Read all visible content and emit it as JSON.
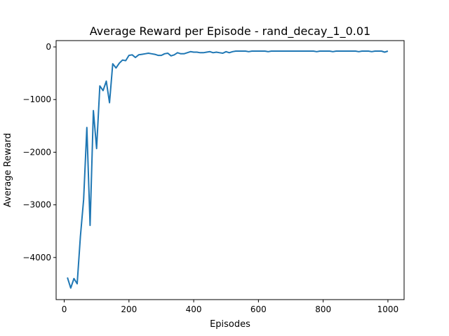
{
  "chart_data": {
    "type": "line",
    "title": "Average Reward per Episode - rand_decay_1_0.01",
    "xlabel": "Episodes",
    "ylabel": "Average Reward",
    "xlim": [
      -25,
      1050
    ],
    "ylim": [
      -4800,
      120
    ],
    "xticks": [
      0,
      200,
      400,
      600,
      800,
      1000
    ],
    "yticks": [
      -4000,
      -3000,
      -2000,
      -1000,
      0
    ],
    "xtick_labels": [
      "0",
      "200",
      "400",
      "600",
      "800",
      "1000"
    ],
    "ytick_labels": [
      "−4000",
      "−3000",
      "−2000",
      "−1000",
      "0"
    ],
    "grid": false,
    "line_color": "#1f77b4",
    "series": [
      {
        "x": [
          10,
          20,
          30,
          40,
          50,
          60,
          70,
          80,
          90,
          100,
          110,
          120,
          130,
          140,
          150,
          160,
          170,
          180,
          190,
          200,
          210,
          220,
          230,
          240,
          250,
          260,
          270,
          280,
          290,
          300,
          310,
          320,
          330,
          340,
          350,
          360,
          370,
          380,
          390,
          400,
          410,
          420,
          430,
          440,
          450,
          460,
          470,
          480,
          490,
          500,
          510,
          520,
          530,
          540,
          550,
          560,
          570,
          580,
          590,
          600,
          610,
          620,
          630,
          640,
          650,
          660,
          670,
          680,
          690,
          700,
          710,
          720,
          730,
          740,
          750,
          760,
          770,
          780,
          790,
          800,
          810,
          820,
          830,
          840,
          850,
          860,
          870,
          880,
          890,
          900,
          910,
          920,
          930,
          940,
          950,
          960,
          970,
          980,
          990,
          1000
        ],
        "values": [
          -4380,
          -4580,
          -4400,
          -4500,
          -3600,
          -2900,
          -1530,
          -3390,
          -1210,
          -1930,
          -740,
          -830,
          -650,
          -1060,
          -320,
          -400,
          -310,
          -250,
          -260,
          -160,
          -150,
          -200,
          -150,
          -140,
          -130,
          -120,
          -130,
          -140,
          -160,
          -160,
          -130,
          -120,
          -170,
          -150,
          -110,
          -130,
          -130,
          -110,
          -90,
          -100,
          -100,
          -110,
          -110,
          -100,
          -90,
          -110,
          -100,
          -110,
          -120,
          -90,
          -110,
          -90,
          -80,
          -80,
          -80,
          -80,
          -90,
          -80,
          -80,
          -80,
          -80,
          -80,
          -90,
          -80,
          -80,
          -80,
          -80,
          -80,
          -80,
          -80,
          -80,
          -80,
          -80,
          -80,
          -80,
          -80,
          -80,
          -90,
          -80,
          -80,
          -80,
          -80,
          -90,
          -80,
          -80,
          -80,
          -80,
          -80,
          -80,
          -80,
          -90,
          -80,
          -80,
          -80,
          -90,
          -80,
          -80,
          -80,
          -100,
          -80
        ]
      }
    ]
  }
}
